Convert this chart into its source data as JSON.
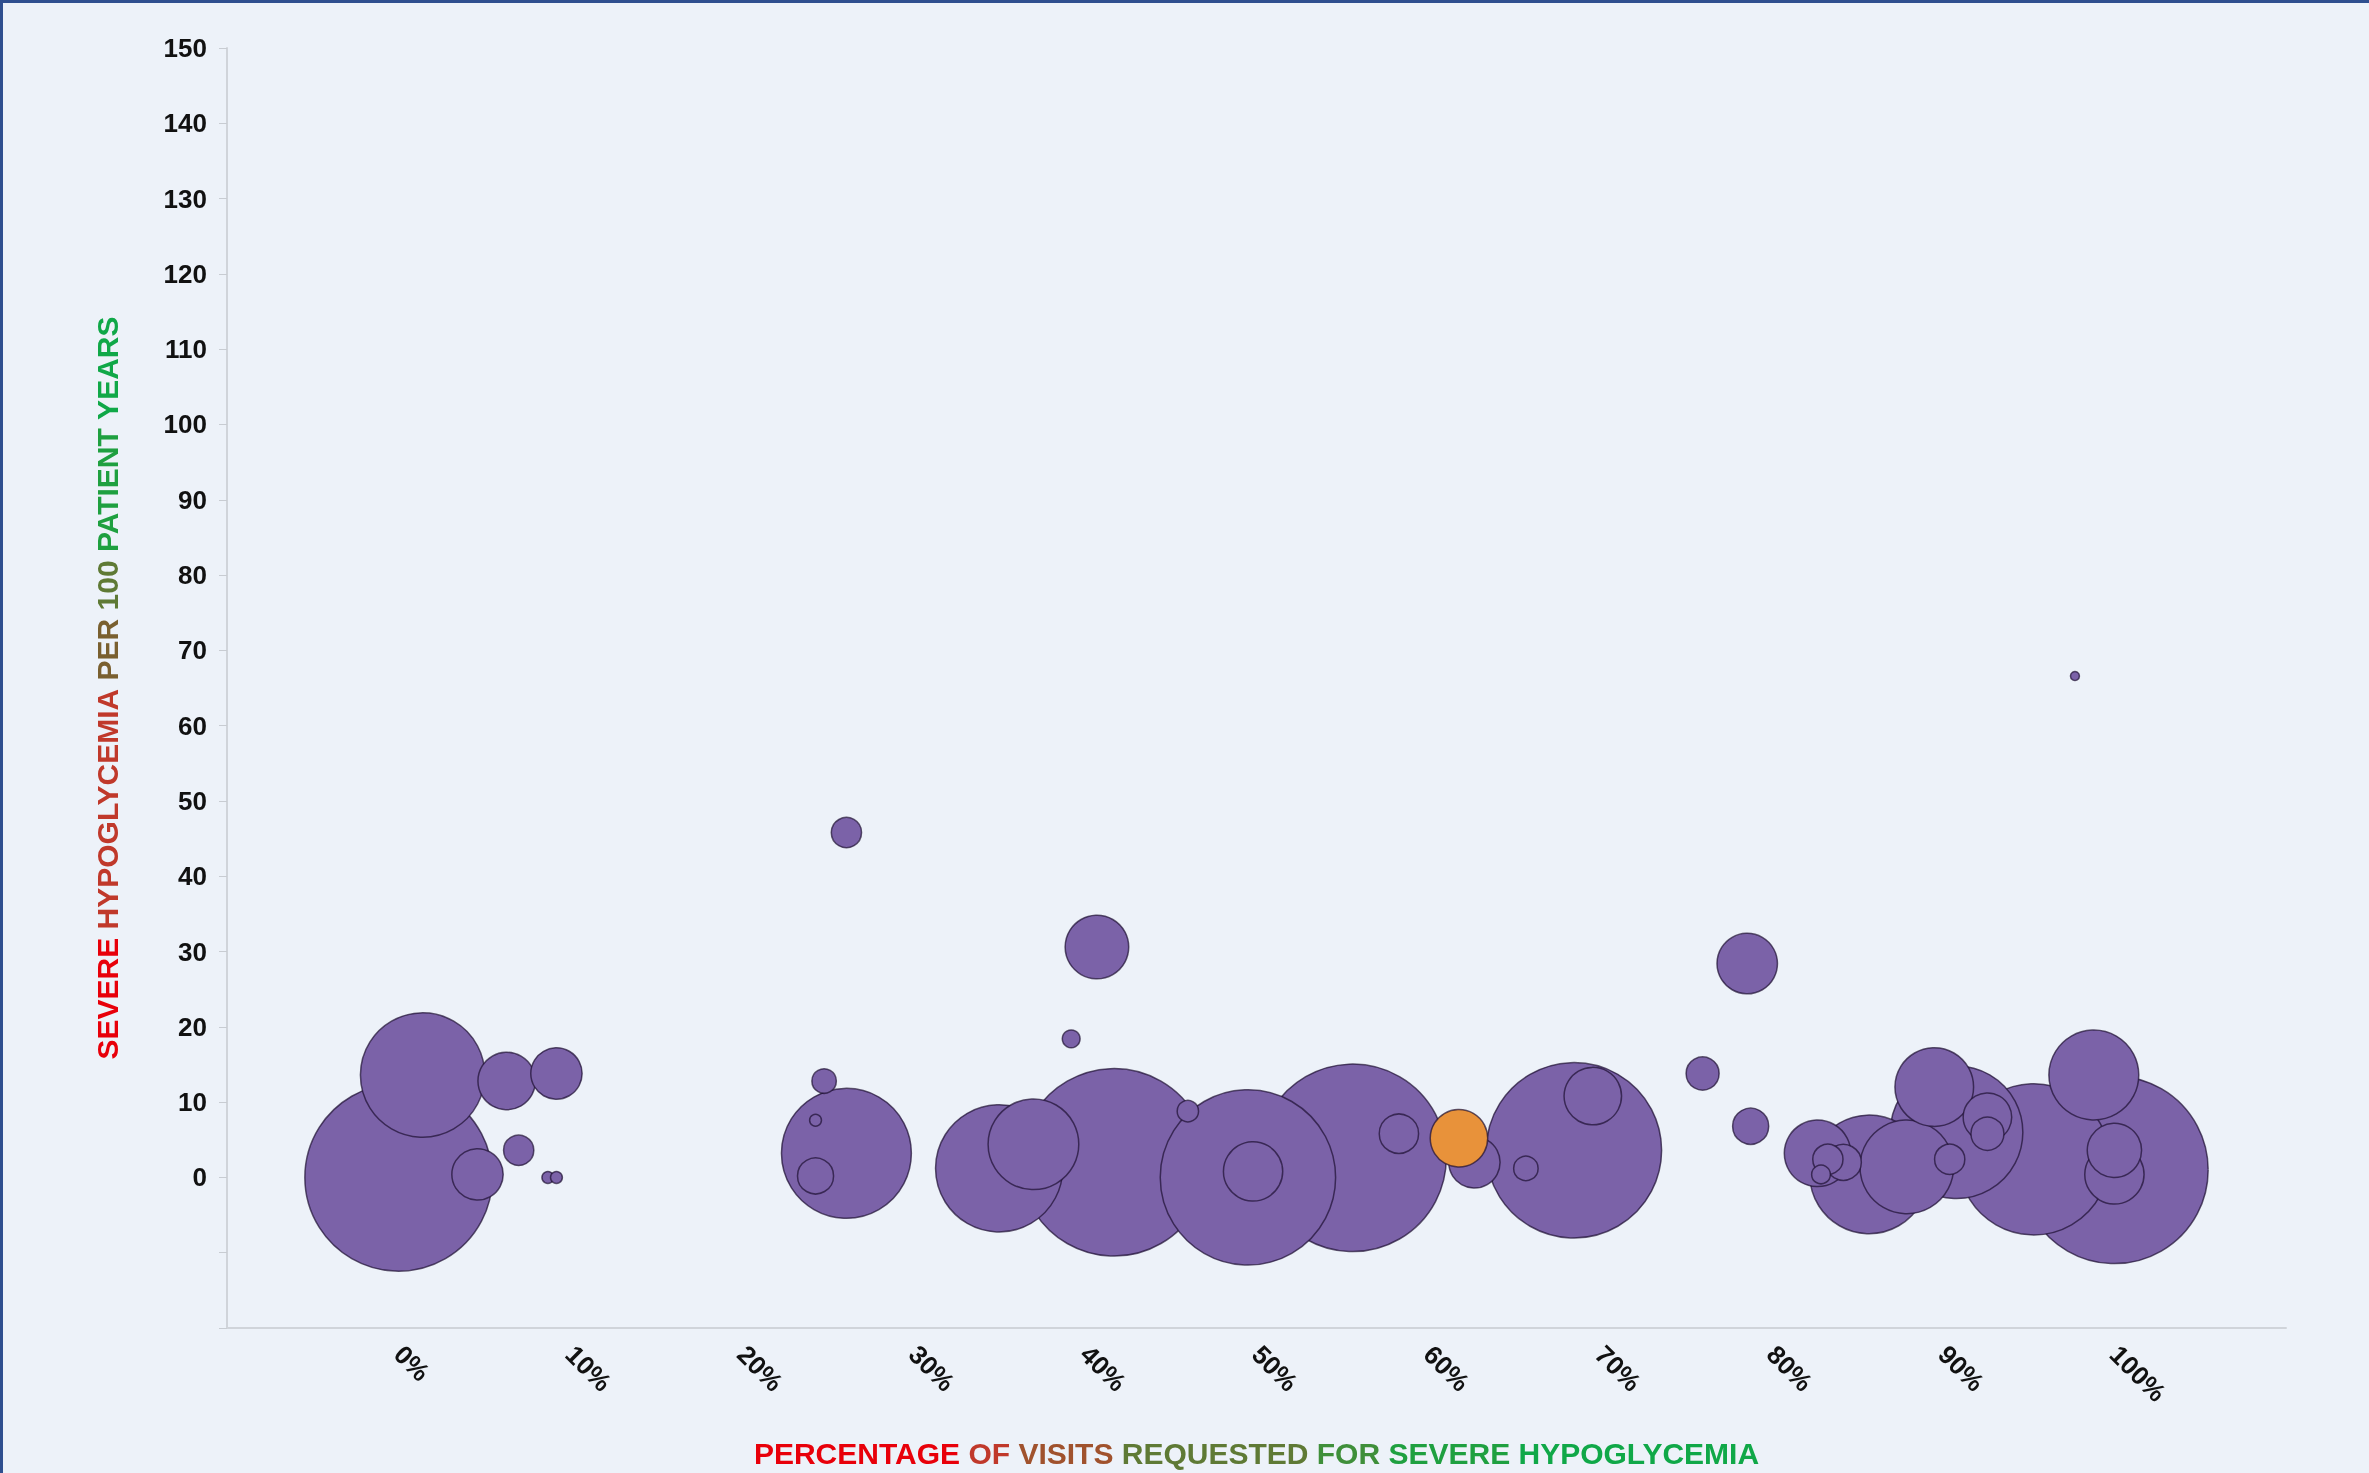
{
  "chart_data": {
    "type": "bubble",
    "xlabel": "PERCENTAGE OF VISITS REQUESTED FOR SEVERE HYPOGLYCEMIA",
    "ylabel": "SEVERE HYPOGLYCEMIA PER 100 PATIENT YEARS",
    "xlim": [
      -10,
      110
    ],
    "xticks": [
      {
        "value": 0,
        "label": "0%"
      },
      {
        "value": 10,
        "label": "10%"
      },
      {
        "value": 20,
        "label": "20%"
      },
      {
        "value": 30,
        "label": "30%"
      },
      {
        "value": 40,
        "label": "40%"
      },
      {
        "value": 50,
        "label": "50%"
      },
      {
        "value": 60,
        "label": "60%"
      },
      {
        "value": 70,
        "label": "70%"
      },
      {
        "value": 80,
        "label": "80%"
      },
      {
        "value": 90,
        "label": "90%"
      },
      {
        "value": 100,
        "label": "100%"
      }
    ],
    "ylim": [
      -20,
      150
    ],
    "yticks": [
      {
        "value": -20,
        "label": null
      },
      {
        "value": -10,
        "label": null
      },
      0,
      10,
      20,
      30,
      40,
      50,
      60,
      70,
      80,
      90,
      100,
      110,
      120,
      130,
      140,
      150
    ],
    "grid": false,
    "series": [
      {
        "color": "#7b62a8",
        "x": [
          0,
          41.7,
          55.6,
          100,
          49.5,
          68.5,
          95.3,
          90.8,
          26.1,
          35,
          1.4,
          85.7,
          87.9,
          37,
          98.8,
          89.5,
          82.7,
          40.7,
          78.6,
          49.8,
          100,
          6.3,
          69.6,
          100,
          4.6,
          9.2,
          62.7,
          92.6,
          58.3,
          24.3,
          78.8,
          84.2,
          76,
          92.6,
          7,
          26.1,
          83.3,
          90.4,
          24.8,
          65.7,
          46,
          82.9,
          39.2,
          8.7,
          9.2,
          24.3,
          97.7
        ],
        "values": [
          0,
          2,
          2.6,
          1,
          0,
          3.6,
          2.4,
          6,
          3.2,
          1.2,
          13.6,
          0.4,
          1.4,
          4.4,
          13.6,
          12,
          3.2,
          30.6,
          28.4,
          0.8,
          0.4,
          12.8,
          10.8,
          3.6,
          0.4,
          13.8,
          2,
          8,
          5.8,
          0.2,
          6.8,
          2,
          13.8,
          5.8,
          3.6,
          45.8,
          2.4,
          2.4,
          12.8,
          1.2,
          8.8,
          0.4,
          18.4,
          0,
          0,
          7.6,
          66.6
        ],
        "sizes": [
          1,
          1,
          1,
          1,
          0.875,
          0.875,
          0.65,
          0.5,
          0.48,
          0.46,
          0.44,
          0.4,
          0.25,
          0.234,
          0.23,
          0.176,
          0.126,
          0.115,
          0.104,
          0.1,
          0.1,
          0.094,
          0.094,
          0.084,
          0.075,
          0.075,
          0.075,
          0.067,
          0.044,
          0.037,
          0.037,
          0.037,
          0.031,
          0.031,
          0.026,
          0.026,
          0.026,
          0.026,
          0.017,
          0.017,
          0.013,
          0.01,
          0.009,
          0.004,
          0.004,
          0.004,
          0.0023
        ]
      },
      {
        "color": "#e8923a",
        "x": [
          61.8
        ],
        "values": [
          5.2
        ],
        "sizes": [
          0.094
        ]
      }
    ]
  }
}
